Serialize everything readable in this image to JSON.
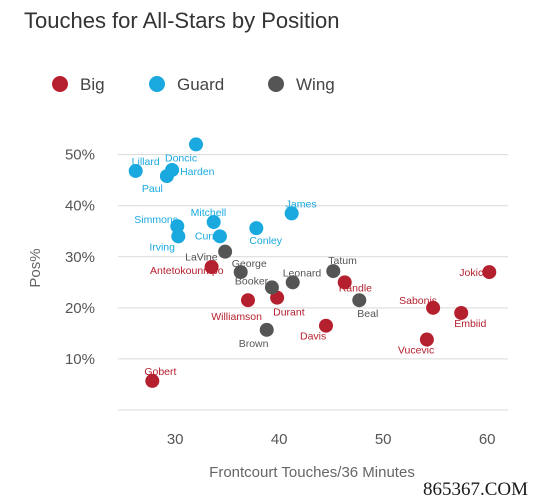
{
  "chart_data": {
    "type": "scatter",
    "title": "Touches for All-Stars by Position",
    "xlabel": "Frontcourt Touches/36 Minutes",
    "ylabel": "Pos%",
    "xlim": [
      24.5,
      62
    ],
    "ylim": [
      0.0,
      0.56
    ],
    "xticks": [
      30,
      40,
      50,
      60
    ],
    "yticks": [
      0.1,
      0.2,
      0.3,
      0.4,
      0.5
    ],
    "ytick_labels": [
      "10%",
      "20%",
      "30%",
      "40%",
      "50%"
    ],
    "grid": "horizontal",
    "legend_position": "top",
    "series": [
      {
        "name": "Big",
        "color": "#b5202e",
        "points": [
          {
            "label": "Gobert",
            "x": 27.8,
            "y": 0.057
          },
          {
            "label": "Antetokounmpo",
            "x": 33.5,
            "y": 0.28
          },
          {
            "label": "Williamson",
            "x": 37.0,
            "y": 0.215
          },
          {
            "label": "Durant",
            "x": 39.8,
            "y": 0.22
          },
          {
            "label": "Davis",
            "x": 44.5,
            "y": 0.165
          },
          {
            "label": "Randle",
            "x": 46.3,
            "y": 0.25
          },
          {
            "label": "Sabonis",
            "x": 54.8,
            "y": 0.2
          },
          {
            "label": "Vucevic",
            "x": 54.2,
            "y": 0.138
          },
          {
            "label": "Embiid",
            "x": 57.5,
            "y": 0.19
          },
          {
            "label": "Jokic",
            "x": 60.2,
            "y": 0.27
          }
        ]
      },
      {
        "name": "Guard",
        "color": "#19a9df",
        "points": [
          {
            "label": "Lillard",
            "x": 26.2,
            "y": 0.468
          },
          {
            "label": "Paul",
            "x": 29.2,
            "y": 0.458
          },
          {
            "label": "Harden",
            "x": 29.7,
            "y": 0.47
          },
          {
            "label": "Doncic",
            "x": 32.0,
            "y": 0.52
          },
          {
            "label": "Simmons",
            "x": 30.2,
            "y": 0.36
          },
          {
            "label": "Irving",
            "x": 30.3,
            "y": 0.34
          },
          {
            "label": "Mitchell",
            "x": 33.7,
            "y": 0.368
          },
          {
            "label": "Curry",
            "x": 34.3,
            "y": 0.34
          },
          {
            "label": "Conley",
            "x": 37.8,
            "y": 0.356
          },
          {
            "label": "James",
            "x": 41.2,
            "y": 0.385
          }
        ]
      },
      {
        "name": "Wing",
        "color": "#555555",
        "points": [
          {
            "label": "LaVine",
            "x": 34.8,
            "y": 0.31
          },
          {
            "label": "George",
            "x": 36.3,
            "y": 0.27
          },
          {
            "label": "Booker",
            "x": 39.3,
            "y": 0.24
          },
          {
            "label": "Leonard",
            "x": 41.3,
            "y": 0.25
          },
          {
            "label": "Tatum",
            "x": 45.2,
            "y": 0.272
          },
          {
            "label": "Beal",
            "x": 47.7,
            "y": 0.215
          },
          {
            "label": "Brown",
            "x": 38.8,
            "y": 0.157
          }
        ]
      }
    ]
  },
  "watermark": "865367.COM"
}
